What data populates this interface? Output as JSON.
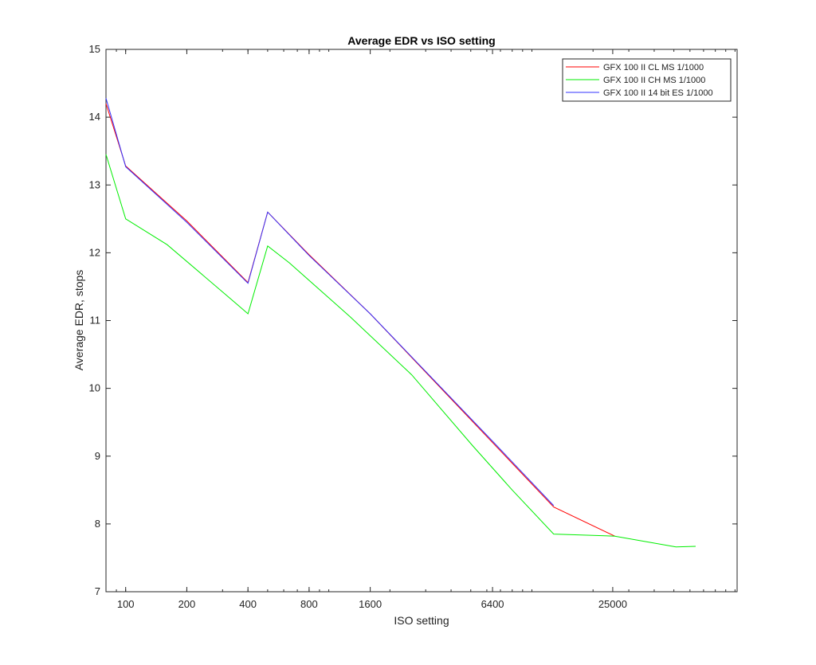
{
  "chart_data": {
    "type": "line",
    "title": "Average EDR vs ISO setting",
    "xlabel": "ISO setting",
    "ylabel": "Average EDR, stops",
    "x_scale": "log2",
    "xlim": [
      80,
      102400
    ],
    "ylim": [
      7,
      15
    ],
    "x_ticks": [
      100,
      200,
      400,
      800,
      1600,
      6400,
      25000
    ],
    "x_tick_labels": [
      "100",
      "200",
      "400",
      "800",
      "1600",
      "6400",
      "25000"
    ],
    "y_ticks": [
      7,
      8,
      9,
      10,
      11,
      12,
      13,
      14,
      15
    ],
    "y_tick_labels": [
      "7",
      "8",
      "9",
      "10",
      "11",
      "12",
      "13",
      "14",
      "15"
    ],
    "grid": false,
    "legend_position": "top-right",
    "series": [
      {
        "name": "GFX 100 II CL MS 1/1000",
        "color": "#ff0000",
        "x": [
          80,
          100,
          200,
          400,
          500,
          800,
          1600,
          3200,
          6400,
          12800,
          25600
        ],
        "y": [
          14.2,
          13.28,
          12.47,
          11.56,
          12.6,
          11.97,
          11.1,
          10.15,
          9.2,
          8.25,
          7.82
        ]
      },
      {
        "name": "GFX 100 II CH MS 1/1000",
        "color": "#00ee00",
        "x": [
          80,
          100,
          160,
          320,
          400,
          500,
          640,
          1280,
          2560,
          5120,
          8000,
          12800,
          25600,
          51200,
          64000
        ],
        "y": [
          13.45,
          12.5,
          12.12,
          11.35,
          11.1,
          12.1,
          11.85,
          11.05,
          10.2,
          9.15,
          8.5,
          7.85,
          7.82,
          7.66,
          7.67
        ]
      },
      {
        "name": "GFX 100 II 14 bit ES 1/1000",
        "color": "#3333ff",
        "x": [
          80,
          100,
          200,
          400,
          500,
          800,
          1600,
          3200,
          6400,
          12800
        ],
        "y": [
          14.28,
          13.27,
          12.45,
          11.55,
          12.6,
          11.96,
          11.1,
          10.16,
          9.22,
          8.27
        ]
      }
    ]
  }
}
